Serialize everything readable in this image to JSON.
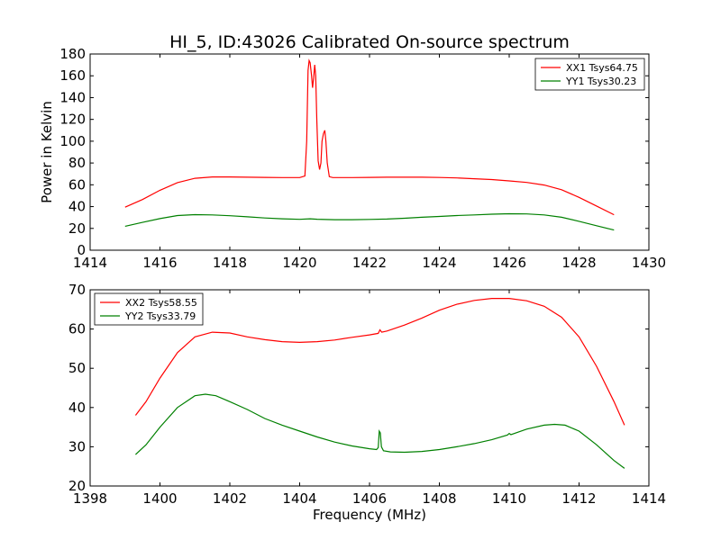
{
  "figure": {
    "title": "HI_5, ID:43026 Calibrated On-source spectrum"
  },
  "chart_data": [
    {
      "type": "line",
      "title": "HI_5, ID:43026 Calibrated On-source spectrum",
      "xlabel": "",
      "ylabel": "Power in Kelvin",
      "xlim": [
        1414,
        1430
      ],
      "ylim": [
        0,
        180
      ],
      "xticks": [
        "1414",
        "1416",
        "1418",
        "1420",
        "1422",
        "1424",
        "1426",
        "1428",
        "1430"
      ],
      "yticks": [
        "0",
        "20",
        "40",
        "60",
        "80",
        "100",
        "120",
        "140",
        "160",
        "180"
      ],
      "grid": false,
      "legend_position": "top-right",
      "series": [
        {
          "name": "XX1 Tsys64.75",
          "color": "#ff0000",
          "points": [
            [
              1415.0,
              39.5
            ],
            [
              1415.5,
              46.5
            ],
            [
              1416.0,
              55.0
            ],
            [
              1416.5,
              62.0
            ],
            [
              1417.0,
              66.0
            ],
            [
              1417.5,
              67.2
            ],
            [
              1418.0,
              67.2
            ],
            [
              1418.5,
              67.0
            ],
            [
              1419.0,
              66.8
            ],
            [
              1419.5,
              66.6
            ],
            [
              1420.0,
              66.6
            ],
            [
              1420.15,
              68.0
            ],
            [
              1420.2,
              100.0
            ],
            [
              1420.24,
              165.0
            ],
            [
              1420.27,
              174.0
            ],
            [
              1420.3,
              172.0
            ],
            [
              1420.34,
              160.0
            ],
            [
              1420.37,
              149.0
            ],
            [
              1420.4,
              158.0
            ],
            [
              1420.43,
              170.0
            ],
            [
              1420.46,
              160.0
            ],
            [
              1420.49,
              120.0
            ],
            [
              1420.53,
              82.0
            ],
            [
              1420.57,
              74.0
            ],
            [
              1420.61,
              80.0
            ],
            [
              1420.64,
              100.0
            ],
            [
              1420.68,
              107.0
            ],
            [
              1420.72,
              110.0
            ],
            [
              1420.75,
              100.0
            ],
            [
              1420.79,
              80.0
            ],
            [
              1420.85,
              67.5
            ],
            [
              1420.95,
              66.6
            ],
            [
              1421.5,
              66.6
            ],
            [
              1422.0,
              66.8
            ],
            [
              1422.5,
              67.0
            ],
            [
              1423.0,
              67.0
            ],
            [
              1423.5,
              67.0
            ],
            [
              1424.0,
              66.7
            ],
            [
              1424.5,
              66.3
            ],
            [
              1425.0,
              65.6
            ],
            [
              1425.5,
              64.8
            ],
            [
              1426.0,
              63.6
            ],
            [
              1426.5,
              62.2
            ],
            [
              1427.0,
              59.8
            ],
            [
              1427.5,
              55.5
            ],
            [
              1428.0,
              48.5
            ],
            [
              1428.5,
              40.5
            ],
            [
              1429.0,
              32.5
            ]
          ]
        },
        {
          "name": "YY1 Tsys30.23",
          "color": "#008000",
          "points": [
            [
              1415.0,
              22.0
            ],
            [
              1415.5,
              25.5
            ],
            [
              1416.0,
              29.0
            ],
            [
              1416.5,
              31.8
            ],
            [
              1417.0,
              32.6
            ],
            [
              1417.5,
              32.4
            ],
            [
              1418.0,
              31.6
            ],
            [
              1418.5,
              30.6
            ],
            [
              1419.0,
              29.6
            ],
            [
              1419.5,
              28.8
            ],
            [
              1420.0,
              28.3
            ],
            [
              1420.3,
              28.8
            ],
            [
              1420.5,
              28.4
            ],
            [
              1421.0,
              28.0
            ],
            [
              1421.5,
              28.0
            ],
            [
              1422.0,
              28.2
            ],
            [
              1422.5,
              28.6
            ],
            [
              1423.0,
              29.3
            ],
            [
              1423.5,
              30.2
            ],
            [
              1424.0,
              31.0
            ],
            [
              1424.5,
              31.8
            ],
            [
              1425.0,
              32.4
            ],
            [
              1425.5,
              33.0
            ],
            [
              1426.0,
              33.4
            ],
            [
              1426.5,
              33.3
            ],
            [
              1427.0,
              32.4
            ],
            [
              1427.5,
              30.2
            ],
            [
              1428.0,
              26.5
            ],
            [
              1428.5,
              22.5
            ],
            [
              1429.0,
              18.5
            ]
          ]
        }
      ]
    },
    {
      "type": "line",
      "title": "",
      "xlabel": "Frequency (MHz)",
      "ylabel": "",
      "xlim": [
        1398,
        1414
      ],
      "ylim": [
        20,
        70
      ],
      "xticks": [
        "1398",
        "1400",
        "1402",
        "1404",
        "1406",
        "1408",
        "1410",
        "1412",
        "1414"
      ],
      "yticks": [
        "20",
        "30",
        "40",
        "50",
        "60",
        "70"
      ],
      "grid": false,
      "legend_position": "top-left",
      "series": [
        {
          "name": "XX2 Tsys58.55",
          "color": "#ff0000",
          "points": [
            [
              1399.3,
              38.0
            ],
            [
              1399.6,
              41.5
            ],
            [
              1400.0,
              47.5
            ],
            [
              1400.5,
              54.0
            ],
            [
              1401.0,
              58.0
            ],
            [
              1401.5,
              59.2
            ],
            [
              1402.0,
              59.0
            ],
            [
              1402.5,
              58.0
            ],
            [
              1403.0,
              57.3
            ],
            [
              1403.5,
              56.8
            ],
            [
              1404.0,
              56.6
            ],
            [
              1404.5,
              56.8
            ],
            [
              1405.0,
              57.2
            ],
            [
              1405.5,
              57.9
            ],
            [
              1406.0,
              58.5
            ],
            [
              1406.25,
              58.9
            ],
            [
              1406.3,
              59.8
            ],
            [
              1406.35,
              59.2
            ],
            [
              1406.5,
              59.5
            ],
            [
              1407.0,
              61.0
            ],
            [
              1407.5,
              62.8
            ],
            [
              1408.0,
              64.8
            ],
            [
              1408.5,
              66.3
            ],
            [
              1409.0,
              67.3
            ],
            [
              1409.5,
              67.8
            ],
            [
              1410.0,
              67.8
            ],
            [
              1410.5,
              67.2
            ],
            [
              1411.0,
              65.8
            ],
            [
              1411.5,
              63.0
            ],
            [
              1412.0,
              58.0
            ],
            [
              1412.5,
              50.5
            ],
            [
              1413.0,
              41.5
            ],
            [
              1413.3,
              35.5
            ]
          ]
        },
        {
          "name": "YY2 Tsys33.79",
          "color": "#008000",
          "points": [
            [
              1399.3,
              28.0
            ],
            [
              1399.6,
              30.5
            ],
            [
              1400.0,
              35.0
            ],
            [
              1400.5,
              40.0
            ],
            [
              1401.0,
              43.0
            ],
            [
              1401.3,
              43.4
            ],
            [
              1401.6,
              43.0
            ],
            [
              1402.0,
              41.5
            ],
            [
              1402.5,
              39.5
            ],
            [
              1403.0,
              37.2
            ],
            [
              1403.5,
              35.5
            ],
            [
              1404.0,
              34.0
            ],
            [
              1404.5,
              32.5
            ],
            [
              1405.0,
              31.2
            ],
            [
              1405.5,
              30.2
            ],
            [
              1406.0,
              29.5
            ],
            [
              1406.2,
              29.3
            ],
            [
              1406.25,
              29.8
            ],
            [
              1406.28,
              34.0
            ],
            [
              1406.31,
              33.5
            ],
            [
              1406.34,
              30.0
            ],
            [
              1406.4,
              29.0
            ],
            [
              1406.6,
              28.7
            ],
            [
              1407.0,
              28.6
            ],
            [
              1407.5,
              28.8
            ],
            [
              1408.0,
              29.3
            ],
            [
              1408.5,
              30.0
            ],
            [
              1409.0,
              30.8
            ],
            [
              1409.5,
              31.8
            ],
            [
              1409.95,
              33.0
            ],
            [
              1410.0,
              33.4
            ],
            [
              1410.05,
              33.1
            ],
            [
              1410.5,
              34.5
            ],
            [
              1411.0,
              35.5
            ],
            [
              1411.3,
              35.7
            ],
            [
              1411.6,
              35.5
            ],
            [
              1412.0,
              34.0
            ],
            [
              1412.5,
              30.5
            ],
            [
              1413.0,
              26.5
            ],
            [
              1413.3,
              24.5
            ]
          ]
        }
      ]
    }
  ]
}
